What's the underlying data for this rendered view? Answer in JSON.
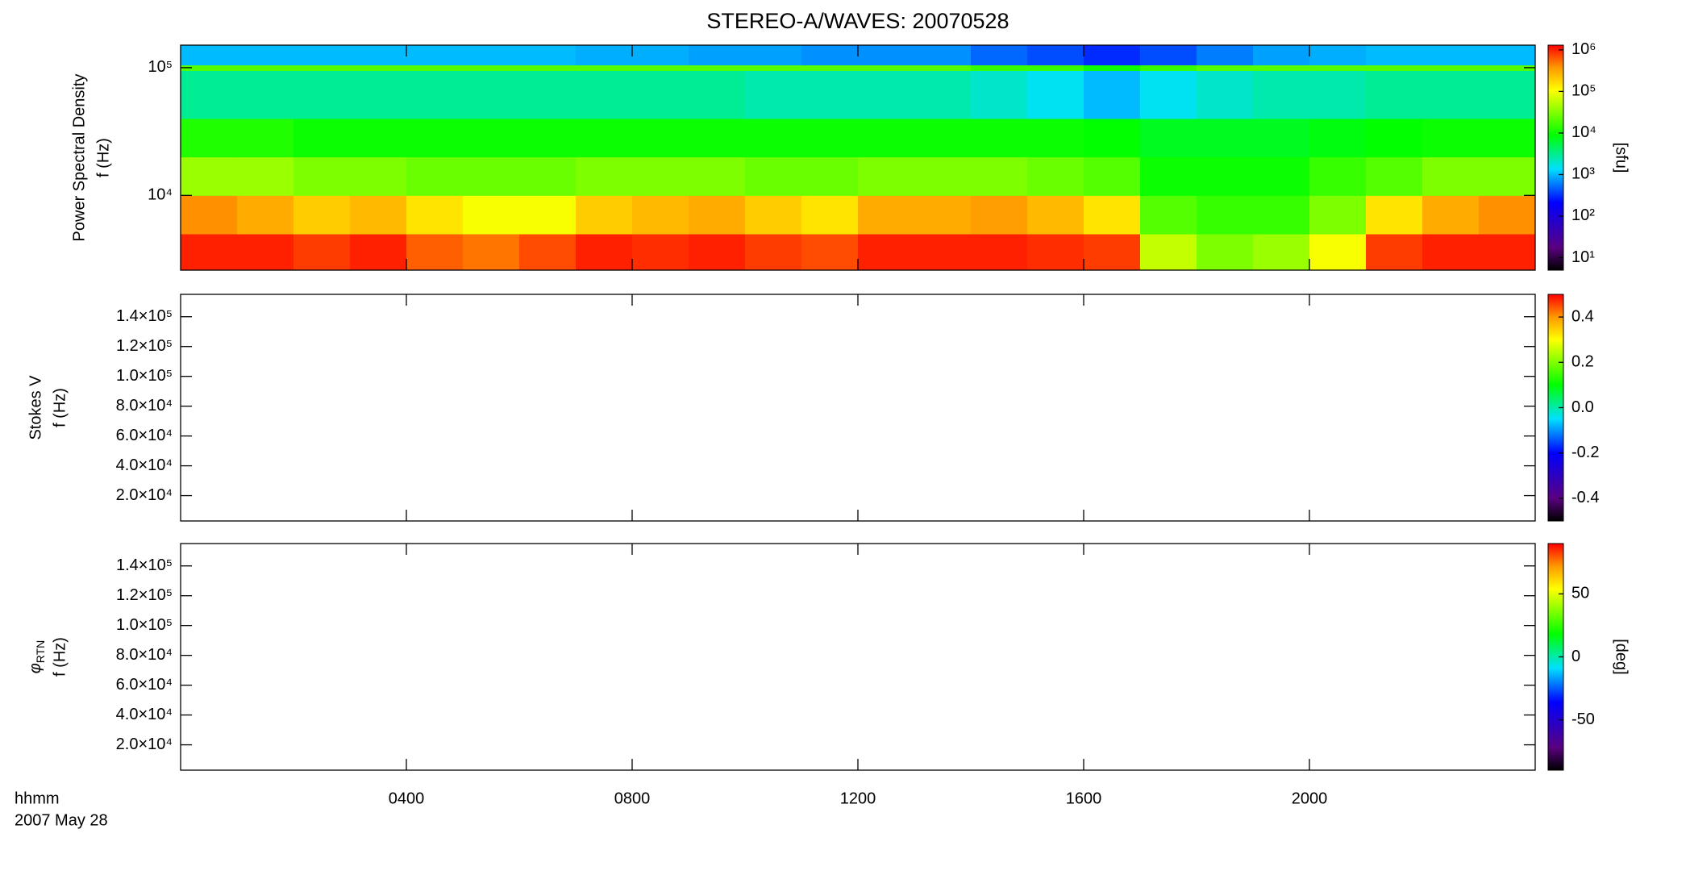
{
  "figure": {
    "title": "STEREO-A/WAVES: 20070528",
    "xlabel": "hhmm",
    "date": "2007 May 28",
    "xlim": [
      0,
      24
    ],
    "xticks": [
      {
        "value": 4,
        "label": "0400"
      },
      {
        "value": 8,
        "label": "0800"
      },
      {
        "value": 12,
        "label": "1200"
      },
      {
        "value": 16,
        "label": "1600"
      },
      {
        "value": 20,
        "label": "2000"
      }
    ]
  },
  "chart_data": [
    {
      "type": "heatmap",
      "ylabel": "Power Spectral Density",
      "ylabel2": "f (Hz)",
      "ylog": true,
      "ylim": [
        2600,
        150000
      ],
      "yticks": [
        {
          "value": 10000,
          "label": "10⁴"
        },
        {
          "value": 100000,
          "label": "10⁵"
        }
      ],
      "zlabel": "[sfu]",
      "zlog": true,
      "zlim": [
        5,
        1300000
      ],
      "zticks": [
        {
          "value": 10,
          "label": "10¹"
        },
        {
          "value": 100,
          "label": "10²"
        },
        {
          "value": 1000,
          "label": "10³"
        },
        {
          "value": 10000,
          "label": "10⁴"
        },
        {
          "value": 100000,
          "label": "10⁵"
        },
        {
          "value": 1000000,
          "label": "10⁶"
        }
      ],
      "x_bins": [
        0,
        1,
        2,
        3,
        4,
        5,
        6,
        7,
        8,
        9,
        10,
        11,
        12,
        13,
        14,
        15,
        16,
        17,
        18,
        19,
        20,
        21,
        22,
        23,
        24
      ],
      "y_bins": [
        2600,
        5000,
        10000,
        20000,
        40000,
        95000,
        105000,
        150000
      ],
      "z": [
        [
          1000000,
          1000000,
          800000,
          1000000,
          600000,
          500000,
          700000,
          1000000,
          900000,
          1000000,
          800000,
          700000,
          1000000,
          1000000,
          1000000,
          900000,
          800000,
          60000,
          30000,
          40000,
          100000,
          800000,
          1000000,
          1000000
        ],
        [
          400000,
          300000,
          200000,
          250000,
          150000,
          100000,
          100000,
          200000,
          250000,
          300000,
          200000,
          150000,
          300000,
          300000,
          350000,
          250000,
          150000,
          20000,
          15000,
          15000,
          30000,
          150000,
          300000,
          400000
        ],
        [
          40000,
          40000,
          30000,
          30000,
          25000,
          25000,
          25000,
          30000,
          30000,
          30000,
          25000,
          25000,
          30000,
          30000,
          30000,
          25000,
          20000,
          10000,
          10000,
          10000,
          15000,
          20000,
          30000,
          30000
        ],
        [
          12000,
          12000,
          10000,
          10000,
          10000,
          10000,
          10000,
          10000,
          10000,
          10000,
          10000,
          10000,
          10000,
          10000,
          10000,
          10000,
          9000,
          7000,
          7000,
          7000,
          8000,
          9000,
          10000,
          10000
        ],
        [
          3000,
          3000,
          3000,
          3000,
          3000,
          3000,
          3000,
          3000,
          3000,
          3000,
          2500,
          2500,
          2500,
          2500,
          2000,
          1500,
          1000,
          1500,
          2000,
          2500,
          2500,
          3000,
          3000,
          3000
        ],
        [
          20000,
          20000,
          20000,
          20000,
          20000,
          20000,
          20000,
          20000,
          20000,
          20000,
          20000,
          20000,
          20000,
          20000,
          15000,
          15000,
          10000,
          15000,
          20000,
          20000,
          20000,
          20000,
          20000,
          20000
        ],
        [
          1000,
          1000,
          1000,
          1000,
          1000,
          1000,
          1000,
          900,
          900,
          800,
          800,
          700,
          700,
          700,
          500,
          400,
          300,
          400,
          600,
          800,
          900,
          1000,
          1000,
          1000
        ]
      ]
    },
    {
      "type": "empty",
      "ylabel": "Stokes V",
      "ylabel2": "f (Hz)",
      "ylim": [
        3000,
        155000
      ],
      "yticks": [
        {
          "value": 20000,
          "label": "2.0×10⁴"
        },
        {
          "value": 40000,
          "label": "4.0×10⁴"
        },
        {
          "value": 60000,
          "label": "6.0×10⁴"
        },
        {
          "value": 80000,
          "label": "8.0×10⁴"
        },
        {
          "value": 100000,
          "label": "1.0×10⁵"
        },
        {
          "value": 120000,
          "label": "1.2×10⁵"
        },
        {
          "value": 140000,
          "label": "1.4×10⁵"
        }
      ],
      "zlim": [
        -0.5,
        0.5
      ],
      "zticks": [
        -0.4,
        -0.2,
        {
          "value": 0,
          "label": "0.0"
        },
        0.2,
        0.4
      ]
    },
    {
      "type": "empty",
      "ylabel_symbol": "φ",
      "ylabel_subscript": "RTN",
      "ylabel2": "f (Hz)",
      "ylim": [
        3000,
        155000
      ],
      "yticks": [
        {
          "value": 20000,
          "label": "2.0×10⁴"
        },
        {
          "value": 40000,
          "label": "4.0×10⁴"
        },
        {
          "value": 60000,
          "label": "6.0×10⁴"
        },
        {
          "value": 80000,
          "label": "8.0×10⁴"
        },
        {
          "value": 100000,
          "label": "1.0×10⁵"
        },
        {
          "value": 120000,
          "label": "1.2×10⁵"
        },
        {
          "value": 140000,
          "label": "1.4×10⁵"
        }
      ],
      "zlabel": "[deg]",
      "zlim": [
        -90,
        90
      ],
      "zticks": [
        -50,
        0,
        50
      ]
    }
  ]
}
